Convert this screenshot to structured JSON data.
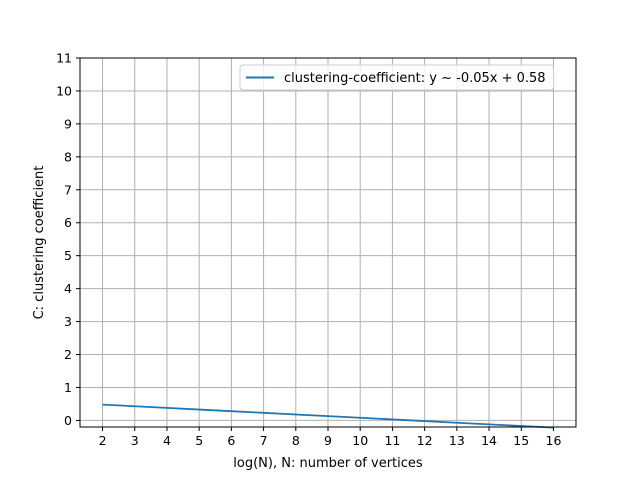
{
  "chart_data": {
    "type": "line",
    "xlabel": "log(N), N: number of vertices",
    "ylabel": "C: clustering coefficient",
    "xlim": [
      1.3,
      16.7
    ],
    "ylim": [
      -0.2,
      11
    ],
    "xticks": [
      2,
      3,
      4,
      5,
      6,
      7,
      8,
      9,
      10,
      11,
      12,
      13,
      14,
      15,
      16
    ],
    "yticks": [
      0,
      1,
      2,
      3,
      4,
      5,
      6,
      7,
      8,
      9,
      10,
      11
    ],
    "grid": true,
    "legend_position": "top-right",
    "series": [
      {
        "name": "clustering-coefficient: y ~ -0.05x + 0.58",
        "color": "#1f77b4",
        "x": [
          2,
          3,
          4,
          5,
          6,
          7,
          8,
          9,
          10,
          11,
          12,
          13,
          14,
          15,
          16
        ],
        "y": [
          0.48,
          0.43,
          0.38,
          0.33,
          0.28,
          0.23,
          0.18,
          0.13,
          0.08,
          0.03,
          -0.02,
          -0.07,
          -0.12,
          -0.17,
          -0.22
        ]
      }
    ]
  }
}
